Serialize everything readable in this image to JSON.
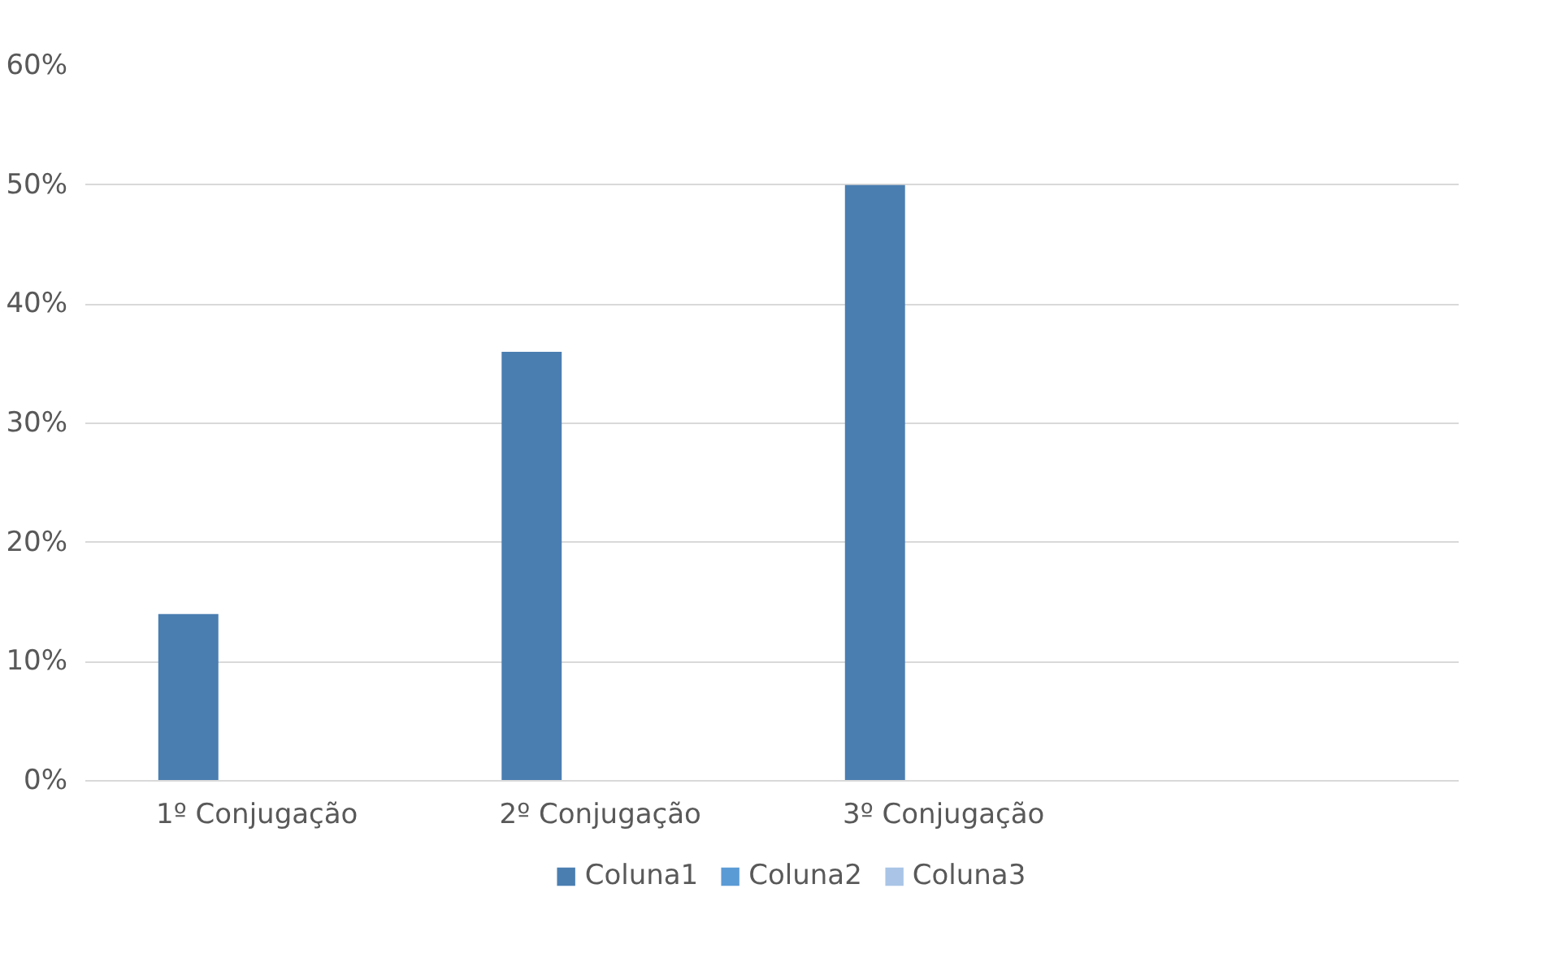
{
  "chart_data": {
    "type": "bar",
    "categories": [
      "1º Conjugação",
      "2º Conjugação",
      "3º Conjugação",
      null
    ],
    "series": [
      {
        "name": "Coluna1",
        "color": "#4a7eb1",
        "values": [
          14,
          36,
          50,
          null
        ]
      },
      {
        "name": "Coluna2",
        "color": "#5b9bd5",
        "values": [
          null,
          null,
          null,
          null
        ]
      },
      {
        "name": "Coluna3",
        "color": "#a9c4e6",
        "values": [
          null,
          null,
          null,
          null
        ]
      }
    ],
    "ylim": [
      0,
      60
    ],
    "yticks": [
      {
        "value": 0,
        "label": "0%"
      },
      {
        "value": 10,
        "label": "10%"
      },
      {
        "value": 20,
        "label": "20%"
      },
      {
        "value": 30,
        "label": "30%"
      },
      {
        "value": 40,
        "label": "40%"
      },
      {
        "value": 50,
        "label": "50%"
      },
      {
        "value": 60,
        "label": "60%"
      }
    ],
    "grid": "y",
    "legend": "bottom"
  }
}
